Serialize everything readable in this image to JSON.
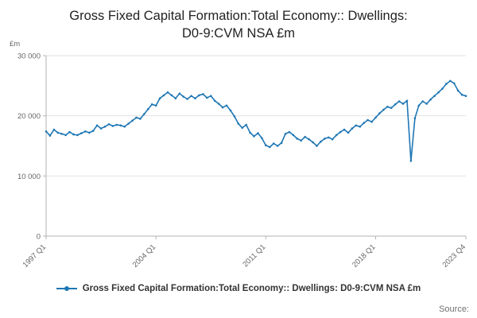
{
  "page": {
    "title_line1": "Gross Fixed Capital Formation:Total Economy:: Dwellings:",
    "title_line2": "D0-9:CVM NSA £m",
    "source_label": "Source:"
  },
  "legend": {
    "label": "Gross Fixed Capital Formation:Total Economy:: Dwellings: D0-9:CVM NSA £m"
  },
  "chart_data": {
    "type": "line",
    "title": "Gross Fixed Capital Formation:Total Economy:: Dwellings: D0-9:CVM NSA £m",
    "unit_label": "£m",
    "ylabel": "£m",
    "xlabel": "",
    "ylim": [
      0,
      30000
    ],
    "grid": true,
    "legend_position": "bottom",
    "line_color": "#1f77b4",
    "y_ticks": [
      {
        "value": 0,
        "label": "0"
      },
      {
        "value": 10000,
        "label": "10 000"
      },
      {
        "value": 20000,
        "label": "20 000"
      },
      {
        "value": 30000,
        "label": "30 000"
      }
    ],
    "x_ticks": [
      "1997 Q1",
      "2004 Q1",
      "2011 Q1",
      "2018 Q1",
      "2023 Q4"
    ],
    "categories": [
      "1997 Q1",
      "1997 Q2",
      "1997 Q3",
      "1997 Q4",
      "1998 Q1",
      "1998 Q2",
      "1998 Q3",
      "1998 Q4",
      "1999 Q1",
      "1999 Q2",
      "1999 Q3",
      "1999 Q4",
      "2000 Q1",
      "2000 Q2",
      "2000 Q3",
      "2000 Q4",
      "2001 Q1",
      "2001 Q2",
      "2001 Q3",
      "2001 Q4",
      "2002 Q1",
      "2002 Q2",
      "2002 Q3",
      "2002 Q4",
      "2003 Q1",
      "2003 Q2",
      "2003 Q3",
      "2003 Q4",
      "2004 Q1",
      "2004 Q2",
      "2004 Q3",
      "2004 Q4",
      "2005 Q1",
      "2005 Q2",
      "2005 Q3",
      "2005 Q4",
      "2006 Q1",
      "2006 Q2",
      "2006 Q3",
      "2006 Q4",
      "2007 Q1",
      "2007 Q2",
      "2007 Q3",
      "2007 Q4",
      "2008 Q1",
      "2008 Q2",
      "2008 Q3",
      "2008 Q4",
      "2009 Q1",
      "2009 Q2",
      "2009 Q3",
      "2009 Q4",
      "2010 Q1",
      "2010 Q2",
      "2010 Q3",
      "2010 Q4",
      "2011 Q1",
      "2011 Q2",
      "2011 Q3",
      "2011 Q4",
      "2012 Q1",
      "2012 Q2",
      "2012 Q3",
      "2012 Q4",
      "2013 Q1",
      "2013 Q2",
      "2013 Q3",
      "2013 Q4",
      "2014 Q1",
      "2014 Q2",
      "2014 Q3",
      "2014 Q4",
      "2015 Q1",
      "2015 Q2",
      "2015 Q3",
      "2015 Q4",
      "2016 Q1",
      "2016 Q2",
      "2016 Q3",
      "2016 Q4",
      "2017 Q1",
      "2017 Q2",
      "2017 Q3",
      "2017 Q4",
      "2018 Q1",
      "2018 Q2",
      "2018 Q3",
      "2018 Q4",
      "2019 Q1",
      "2019 Q2",
      "2019 Q3",
      "2019 Q4",
      "2020 Q1",
      "2020 Q2",
      "2020 Q3",
      "2020 Q4",
      "2021 Q1",
      "2021 Q2",
      "2021 Q3",
      "2021 Q4",
      "2022 Q1",
      "2022 Q2",
      "2022 Q3",
      "2022 Q4",
      "2023 Q1",
      "2023 Q2",
      "2023 Q3",
      "2023 Q4"
    ],
    "values": [
      17400,
      16700,
      17700,
      17200,
      17000,
      16800,
      17300,
      16900,
      16800,
      17100,
      17400,
      17200,
      17500,
      18400,
      17900,
      18200,
      18600,
      18300,
      18500,
      18400,
      18200,
      18700,
      19200,
      19700,
      19500,
      20300,
      21100,
      21900,
      21700,
      22900,
      23400,
      23900,
      23400,
      22900,
      23700,
      23200,
      22800,
      23300,
      22900,
      23400,
      23600,
      23000,
      23300,
      22500,
      22000,
      21400,
      21700,
      20900,
      19900,
      18700,
      18000,
      18500,
      17200,
      16600,
      17100,
      16300,
      15100,
      14800,
      15400,
      15000,
      15500,
      17000,
      17300,
      16800,
      16200,
      15900,
      16500,
      16100,
      15600,
      15000,
      15700,
      16200,
      16400,
      16100,
      16800,
      17300,
      17700,
      17200,
      17900,
      18400,
      18200,
      18800,
      19300,
      19000,
      19700,
      20400,
      21000,
      21500,
      21300,
      21900,
      22400,
      22000,
      22500,
      12500,
      19600,
      21700,
      22400,
      22000,
      22700,
      23300,
      23900,
      24500,
      25300,
      25800,
      25400,
      24200,
      23500,
      23300
    ]
  }
}
